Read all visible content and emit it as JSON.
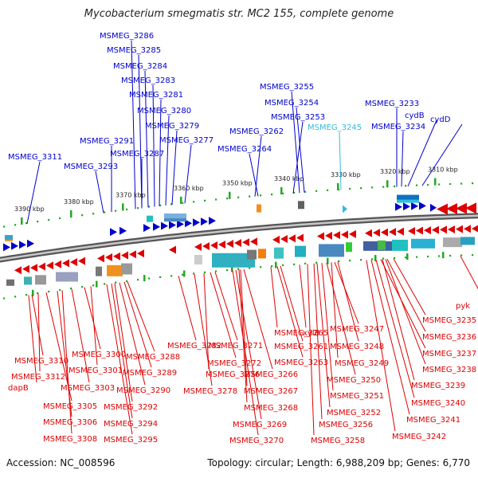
{
  "title": "Mycobacterium smegmatis str. MC2 155, complete genome",
  "footer": {
    "accession": "Accession: NC_008596",
    "summary": "Topology: circular; Length: 6,988,209 bp; Genes: 6,770"
  },
  "colors": {
    "forward": "#0000cc",
    "reverse": "#dd0000",
    "highlight": "#33bbdd",
    "backbone": "#808080",
    "dots": "#22aa22"
  },
  "ticks": [
    "3390 kbp",
    "3380 kbp",
    "3370 kbp",
    "3360 kbp",
    "3350 kbp",
    "3340 kbp",
    "3330 kbp",
    "3320 kbp",
    "3310 kbp"
  ],
  "top_labels": [
    "MSMEG_3286",
    "MSMEG_3285",
    "MSMEG_3284",
    "MSMEG_3283",
    "MSMEG_3281",
    "MSMEG_3280",
    "MSMEG_3279",
    "MSMEG_3277",
    "MSMEG_3287",
    "MSMEG_3291",
    "MSMEG_3293",
    "MSMEG_3311",
    "MSMEG_3255",
    "MSMEG_3254",
    "MSMEG_3253",
    "MSMEG_3262",
    "MSMEG_3264",
    "MSMEG_3245",
    "MSMEG_3233",
    "MSMEG_3234",
    "cydB",
    "cydD"
  ],
  "bottom_labels": [
    "MSMEG_3310",
    "MSMEG_3312",
    "dapB",
    "MSMEG_3305",
    "MSMEG_3306",
    "MSMEG_3308",
    "MSMEG_3300",
    "MSMEG_3301",
    "MSMEG_3303",
    "MSMEG_3288",
    "MSMEG_3289",
    "MSMEG_3290",
    "MSMEG_3292",
    "MSMEG_3294",
    "MSMEG_3295",
    "MSMEG_3282",
    "MSMEG_3271",
    "MSMEG_3272",
    "MSMEG_3276",
    "MSMEG_3278",
    "MSMEG_3266",
    "MSMEG_3267",
    "MSMEG_3268",
    "MSMEG_3269",
    "MSMEG_3270",
    "MSMEG_3265",
    "xylB",
    "MSMEG_3261",
    "MSMEG_3263",
    "MSMEG_3247",
    "MSMEG_3248",
    "MSMEG_3249",
    "MSMEG_3250",
    "MSMEG_3251",
    "MSMEG_3252",
    "MSMEG_3256",
    "MSMEG_3258",
    "MSMEG_3235",
    "MSMEG_3236",
    "MSMEG_3237",
    "MSMEG_3238",
    "MSMEG_3239",
    "MSMEG_3240",
    "MSMEG_3241",
    "MSMEG_3242",
    "pyk"
  ]
}
